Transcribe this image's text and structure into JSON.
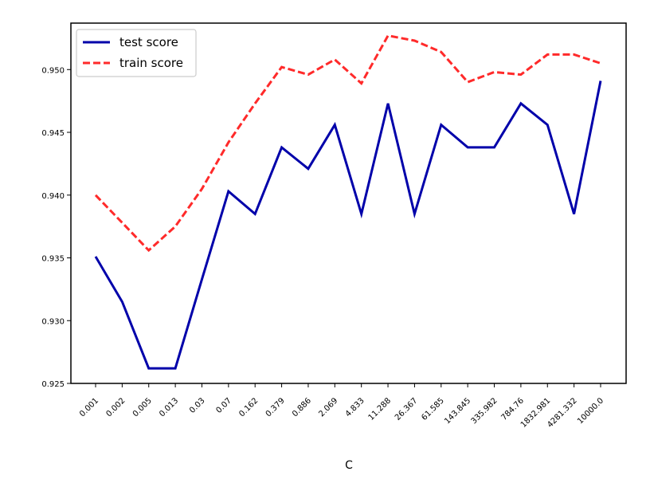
{
  "chart_data": {
    "type": "line",
    "title": "",
    "xlabel": "C",
    "ylabel": "",
    "categories": [
      "0.001",
      "0.002",
      "0.005",
      "0.013",
      "0.03",
      "0.07",
      "0.162",
      "0.379",
      "0.886",
      "2.069",
      "4.833",
      "11.288",
      "26.367",
      "61.585",
      "143.845",
      "335.982",
      "784.76",
      "1832.981",
      "4281.332",
      "10000.0"
    ],
    "series": [
      {
        "name": "test score",
        "color": "#0000aa",
        "style": "solid",
        "values": [
          0.9351,
          0.9315,
          0.9262,
          0.9262,
          0.9333,
          0.9403,
          0.9385,
          0.9438,
          0.9421,
          0.9456,
          0.9385,
          0.9473,
          0.9385,
          0.9456,
          0.9438,
          0.9438,
          0.9473,
          0.9456,
          0.9385,
          0.9491
        ]
      },
      {
        "name": "train score",
        "color": "#ff2a2a",
        "style": "dashed",
        "values": [
          0.94,
          0.9378,
          0.9356,
          0.9375,
          0.9405,
          0.9442,
          0.9473,
          0.9502,
          0.9496,
          0.9508,
          0.9489,
          0.9527,
          0.9523,
          0.9514,
          0.949,
          0.9498,
          0.9496,
          0.9512,
          0.9512,
          0.9505
        ]
      }
    ],
    "ylim": [
      0.925,
      0.9537
    ],
    "yticks": [
      "0.925",
      "0.930",
      "0.935",
      "0.940",
      "0.945",
      "0.950"
    ],
    "legend_position": "top-left",
    "grid": false
  }
}
